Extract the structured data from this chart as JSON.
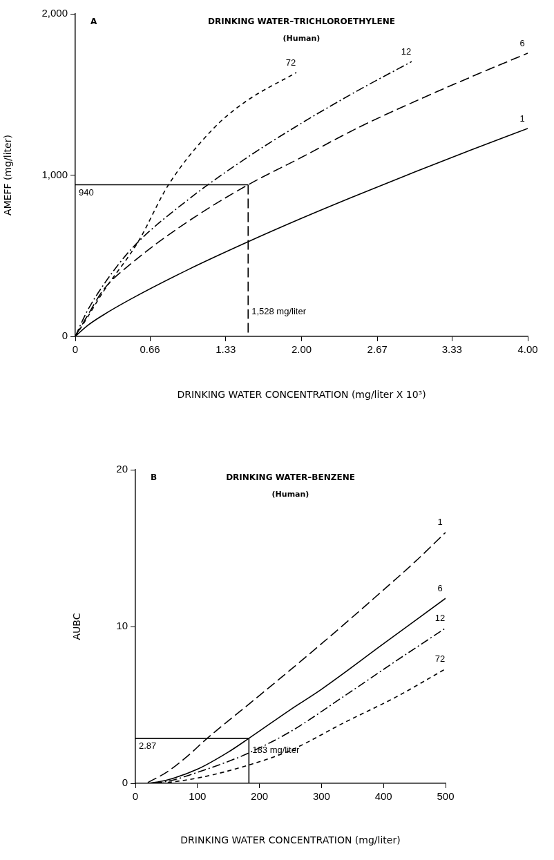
{
  "chart_data": [
    {
      "type": "line",
      "title": "DRINKING WATER–TRICHLOROETHYLENE",
      "subtitle": "(Human)",
      "xlabel": "DRINKING WATER CONCENTRATION (mg/liter X 10³)",
      "ylabel": "AMEFF (mg/liter)",
      "xlim": [
        0,
        4
      ],
      "ylim": [
        0,
        2000
      ],
      "xticks": [
        0,
        0.66,
        1.33,
        {
          "value": 2,
          "label": "2.00"
        },
        2.67,
        3.33,
        {
          "value": 4,
          "label": "4.00"
        }
      ],
      "yticks": [
        0,
        {
          "value": 1000,
          "label": "1,000"
        },
        {
          "value": 2000,
          "label": "2,000"
        }
      ],
      "grid": false,
      "legend": false,
      "marker": "none",
      "annotations": [
        "A",
        {
          "text": "940",
          "x": 0,
          "y": 940
        },
        {
          "text": "1,528 mg/liter",
          "x": 1.528,
          "y": 200
        }
      ],
      "series": [
        {
          "name": "1",
          "color": "#000000",
          "line_style": "solid",
          "x": [
            0,
            0.1,
            0.25,
            0.5,
            1,
            1.5,
            2,
            2.5,
            3,
            3.5,
            4
          ],
          "values": [
            0,
            63,
            134,
            235,
            415,
            578,
            732,
            878,
            1019,
            1156,
            1289
          ]
        },
        {
          "name": "6",
          "color": "#000000",
          "line_style": "dashed",
          "x": [
            0,
            0.1,
            0.25,
            0.5,
            1,
            1.528,
            2,
            2.5,
            3,
            3.5,
            4
          ],
          "values": [
            0,
            120,
            290,
            455,
            714,
            940,
            1110,
            1294,
            1456,
            1609,
            1756
          ]
        },
        {
          "name": "12",
          "color": "#000000",
          "line_style": "dashdot",
          "x": [
            0,
            0.1,
            0.25,
            0.5,
            1,
            1.5,
            2,
            2.5,
            2.974
          ],
          "values": [
            0,
            150,
            320,
            545,
            849,
            1100,
            1322,
            1525,
            1704
          ]
        },
        {
          "name": "72",
          "color": "#000000",
          "line_style": "dotted",
          "x": [
            0,
            0.1,
            0.25,
            0.556,
            0.824,
            1.227,
            1.502,
            1.954
          ],
          "values": [
            0,
            110,
            280,
            587,
            940,
            1293,
            1454,
            1636
          ]
        },
        {
          "color": "#000000",
          "line_style": "solid",
          "x": [
            0,
            1.528
          ],
          "values": [
            940,
            940
          ]
        },
        {
          "color": "#000000",
          "line_style": "dashed",
          "x": [
            1.528,
            1.528
          ],
          "values": [
            940,
            0
          ]
        }
      ]
    },
    {
      "type": "line",
      "title": "DRINKING WATER–BENZENE",
      "subtitle": "(Human)",
      "xlabel": "DRINKING WATER CONCENTRATION (mg/liter)",
      "ylabel": "AUBC",
      "xlim": [
        0,
        500
      ],
      "ylim": [
        0,
        20
      ],
      "xticks": [
        0,
        100,
        200,
        300,
        400,
        500
      ],
      "yticks": [
        0,
        10,
        20
      ],
      "grid": false,
      "legend": false,
      "marker": "none",
      "annotations": [
        "B",
        {
          "text": "2.87",
          "x": 0,
          "y": 2.87
        },
        {
          "text": "183 mg/liter",
          "x": 183,
          "y": 2.6
        }
      ],
      "series": [
        {
          "name": "1",
          "color": "#000000",
          "line_style": "dashed",
          "x": [
            20,
            50,
            80,
            115.8,
            200,
            300,
            386,
            450,
            500
          ],
          "values": [
            0.05,
            0.7,
            1.6,
            2.87,
            5.6,
            8.9,
            11.85,
            14.1,
            16.0
          ]
        },
        {
          "name": "6",
          "color": "#000000",
          "line_style": "solid",
          "x": [
            20,
            50,
            100,
            150,
            183,
            250,
            300,
            400,
            500
          ],
          "values": [
            0,
            0.2,
            0.9,
            2.0,
            2.87,
            4.7,
            6.0,
            8.9,
            11.8
          ]
        },
        {
          "name": "12",
          "color": "#000000",
          "line_style": "dashdot",
          "x": [
            30,
            60,
            100,
            150,
            183,
            250,
            338,
            420,
            500
          ],
          "values": [
            0,
            0.2,
            0.7,
            1.4,
            1.94,
            3.3,
            5.6,
            7.8,
            9.9
          ]
        },
        {
          "name": "72",
          "color": "#000000",
          "line_style": "dotted",
          "x": [
            40,
            80,
            120,
            183,
            250,
            338,
            420,
            500
          ],
          "values": [
            0,
            0.2,
            0.5,
            1.17,
            2.1,
            3.9,
            5.5,
            7.3
          ]
        },
        {
          "color": "#000000",
          "line_style": "solid",
          "x": [
            0,
            183
          ],
          "values": [
            2.87,
            2.87
          ]
        },
        {
          "color": "#000000",
          "line_style": "solid",
          "x": [
            183,
            183
          ],
          "values": [
            2.87,
            0
          ]
        }
      ]
    }
  ]
}
